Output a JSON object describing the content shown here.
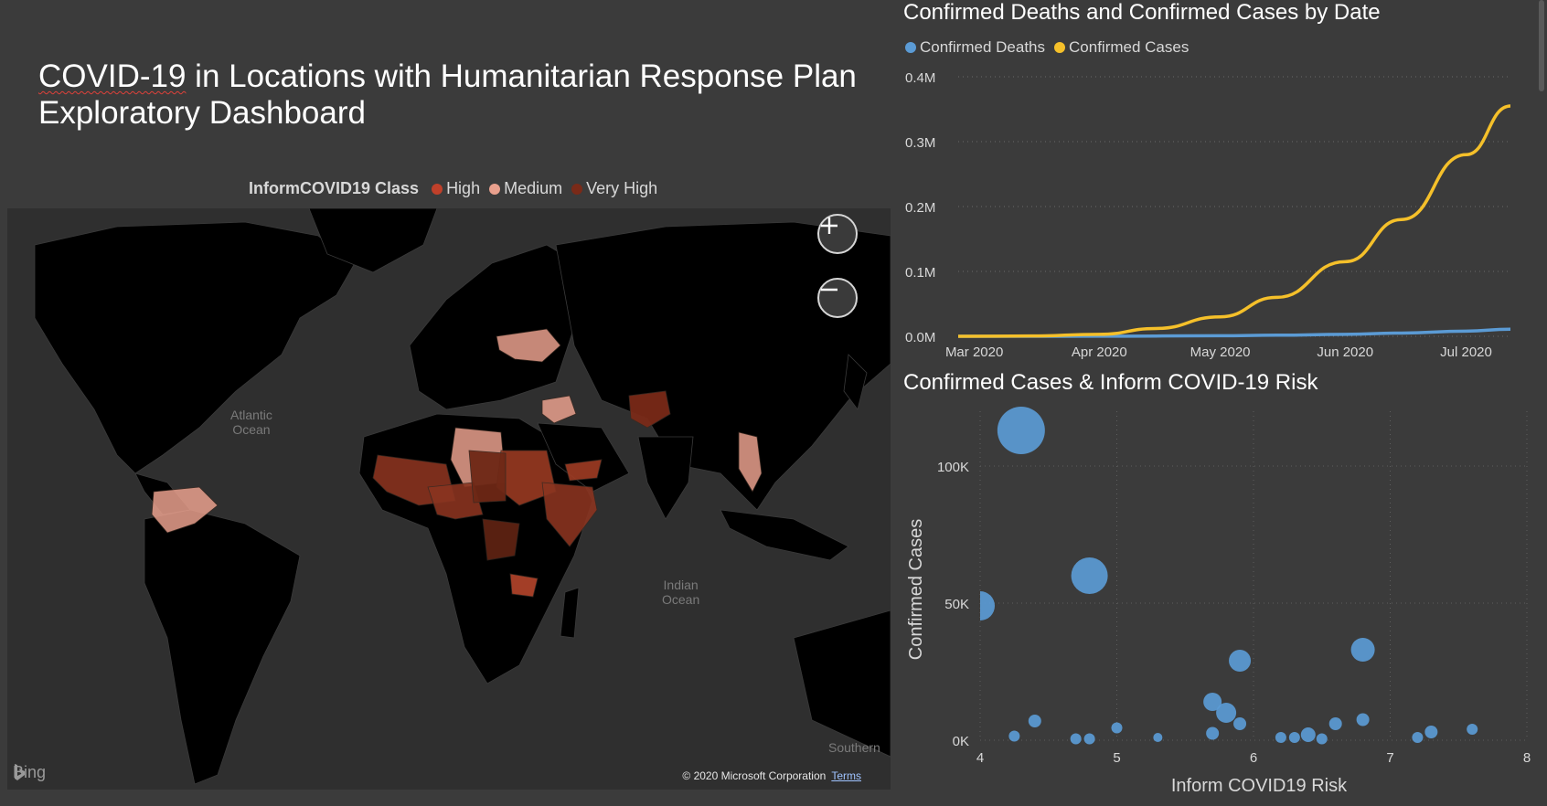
{
  "dashboard": {
    "title_word": "COVID-19",
    "title_rest": " in Locations with Humanitarian Response Plan",
    "title_line2": "Exploratory Dashboard"
  },
  "map": {
    "legend_title": "InformCOVID19 Class",
    "legend_items": [
      {
        "label": "High",
        "color": "#c0402a"
      },
      {
        "label": "Medium",
        "color": "#e9a08d"
      },
      {
        "label": "Very High",
        "color": "#7a2a18"
      }
    ],
    "ocean_atlantic": [
      "Atlantic",
      "Ocean"
    ],
    "ocean_indian": [
      "Indian",
      "Ocean"
    ],
    "ocean_southern": "Southern",
    "bing_label": "Bing",
    "copyright": "© 2020 Microsoft Corporation",
    "terms": "Terms",
    "zoom_in_icon": "plus-icon",
    "zoom_out_icon": "minus-icon"
  },
  "line_panel": {
    "title": "Confirmed Deaths and Confirmed Cases by Date"
  },
  "scatter_panel": {
    "title": "Confirmed Cases & Inform COVID-19 Risk"
  },
  "chart_data": [
    {
      "type": "line",
      "title": "Confirmed Deaths and Confirmed Cases by Date",
      "x_tick_labels": [
        "Mar 2020",
        "Apr 2020",
        "May 2020",
        "Jun 2020",
        "Jul 2020"
      ],
      "y_tick_labels": [
        "0.0M",
        "0.1M",
        "0.2M",
        "0.3M",
        "0.4M"
      ],
      "ylim": [
        0,
        400000
      ],
      "xlim": [
        "2020-02-26",
        "2020-07-12"
      ],
      "grid": true,
      "legend_position": "top-left",
      "series": [
        {
          "name": "Confirmed Deaths",
          "color": "#5b9bd5",
          "x": [
            "2020-02-26",
            "2020-03-15",
            "2020-04-01",
            "2020-04-15",
            "2020-05-01",
            "2020-05-15",
            "2020-06-01",
            "2020-06-15",
            "2020-07-01",
            "2020-07-12"
          ],
          "y": [
            0,
            0,
            100,
            400,
            900,
            1700,
            3000,
            5000,
            8000,
            11000
          ]
        },
        {
          "name": "Confirmed Cases",
          "color": "#f5c02a",
          "x": [
            "2020-02-26",
            "2020-03-15",
            "2020-04-01",
            "2020-04-15",
            "2020-05-01",
            "2020-05-15",
            "2020-06-01",
            "2020-06-15",
            "2020-07-01",
            "2020-07-12"
          ],
          "y": [
            0,
            500,
            3000,
            12000,
            30000,
            60000,
            115000,
            180000,
            280000,
            355000
          ]
        }
      ]
    },
    {
      "type": "scatter",
      "title": "Confirmed Cases & Inform COVID-19 Risk",
      "xlabel": "Inform COVID19 Risk",
      "ylabel": "Confirmed Cases",
      "x_tick_labels": [
        "4",
        "5",
        "6",
        "7",
        "8"
      ],
      "y_tick_labels": [
        "0K",
        "50K",
        "100K"
      ],
      "xlim": [
        4,
        8
      ],
      "ylim": [
        0,
        120000
      ],
      "grid": true,
      "color": "#5b9bd5",
      "points": [
        {
          "x": 4.3,
          "y": 113000,
          "size": 26
        },
        {
          "x": 4.0,
          "y": 49000,
          "size": 16
        },
        {
          "x": 4.8,
          "y": 60000,
          "size": 20
        },
        {
          "x": 6.8,
          "y": 33000,
          "size": 13
        },
        {
          "x": 5.9,
          "y": 29000,
          "size": 12
        },
        {
          "x": 5.7,
          "y": 14000,
          "size": 10
        },
        {
          "x": 5.8,
          "y": 10000,
          "size": 11
        },
        {
          "x": 5.9,
          "y": 6000,
          "size": 7
        },
        {
          "x": 4.4,
          "y": 7000,
          "size": 7
        },
        {
          "x": 4.25,
          "y": 1500,
          "size": 6
        },
        {
          "x": 4.7,
          "y": 500,
          "size": 6
        },
        {
          "x": 4.8,
          "y": 500,
          "size": 6
        },
        {
          "x": 5.0,
          "y": 4500,
          "size": 6
        },
        {
          "x": 5.3,
          "y": 1000,
          "size": 5
        },
        {
          "x": 5.7,
          "y": 2500,
          "size": 7
        },
        {
          "x": 6.2,
          "y": 1000,
          "size": 6
        },
        {
          "x": 6.3,
          "y": 1000,
          "size": 6
        },
        {
          "x": 6.4,
          "y": 2000,
          "size": 8
        },
        {
          "x": 6.5,
          "y": 500,
          "size": 6
        },
        {
          "x": 6.6,
          "y": 6000,
          "size": 7
        },
        {
          "x": 6.8,
          "y": 7500,
          "size": 7
        },
        {
          "x": 7.2,
          "y": 1000,
          "size": 6
        },
        {
          "x": 7.3,
          "y": 3000,
          "size": 7
        },
        {
          "x": 7.6,
          "y": 4000,
          "size": 6
        }
      ]
    }
  ]
}
